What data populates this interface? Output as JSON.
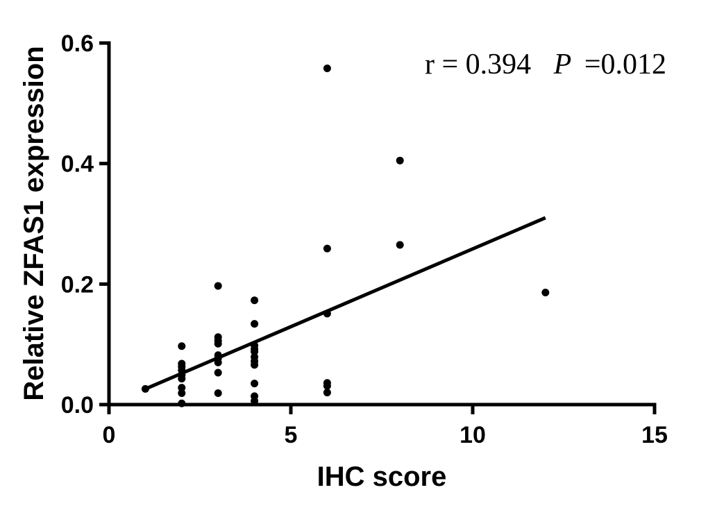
{
  "chart_data": {
    "type": "scatter",
    "title": "",
    "xlabel": "IHC score",
    "ylabel": "Relative ZFAS1 expression",
    "xlim": [
      0,
      15
    ],
    "ylim": [
      0,
      0.6
    ],
    "xticks": [
      0,
      5,
      10,
      15
    ],
    "xtick_labels": [
      "0",
      "5",
      "10",
      "15"
    ],
    "yticks": [
      0,
      0.2,
      0.4,
      0.6
    ],
    "ytick_labels": [
      "0.0",
      "0.2",
      "0.4",
      "0.6"
    ],
    "grid": false,
    "annotation": {
      "r_text": "r = 0.394",
      "p_label": "P",
      "p_text": "=0.012"
    },
    "points": [
      {
        "x": 1,
        "y": 0.026
      },
      {
        "x": 2,
        "y": 0.097
      },
      {
        "x": 2,
        "y": 0.068
      },
      {
        "x": 2,
        "y": 0.063
      },
      {
        "x": 2,
        "y": 0.057
      },
      {
        "x": 2,
        "y": 0.049
      },
      {
        "x": 2,
        "y": 0.043
      },
      {
        "x": 2,
        "y": 0.028
      },
      {
        "x": 2,
        "y": 0.019
      },
      {
        "x": 2,
        "y": 0.002
      },
      {
        "x": 3,
        "y": 0.197
      },
      {
        "x": 3,
        "y": 0.112
      },
      {
        "x": 3,
        "y": 0.106
      },
      {
        "x": 3,
        "y": 0.101
      },
      {
        "x": 3,
        "y": 0.082
      },
      {
        "x": 3,
        "y": 0.077
      },
      {
        "x": 3,
        "y": 0.07
      },
      {
        "x": 3,
        "y": 0.053
      },
      {
        "x": 3,
        "y": 0.019
      },
      {
        "x": 4,
        "y": 0.173
      },
      {
        "x": 4,
        "y": 0.134
      },
      {
        "x": 4,
        "y": 0.098
      },
      {
        "x": 4,
        "y": 0.092
      },
      {
        "x": 4,
        "y": 0.088
      },
      {
        "x": 4,
        "y": 0.079
      },
      {
        "x": 4,
        "y": 0.072
      },
      {
        "x": 4,
        "y": 0.066
      },
      {
        "x": 4,
        "y": 0.035
      },
      {
        "x": 4,
        "y": 0.014
      },
      {
        "x": 4,
        "y": 0.006
      },
      {
        "x": 6,
        "y": 0.558
      },
      {
        "x": 6,
        "y": 0.259
      },
      {
        "x": 6,
        "y": 0.151
      },
      {
        "x": 6,
        "y": 0.036
      },
      {
        "x": 6,
        "y": 0.031
      },
      {
        "x": 6,
        "y": 0.02
      },
      {
        "x": 8,
        "y": 0.405
      },
      {
        "x": 8,
        "y": 0.265
      },
      {
        "x": 12,
        "y": 0.186
      }
    ],
    "regression_line": {
      "x": [
        1,
        12
      ],
      "y": [
        0.026,
        0.31
      ]
    }
  }
}
